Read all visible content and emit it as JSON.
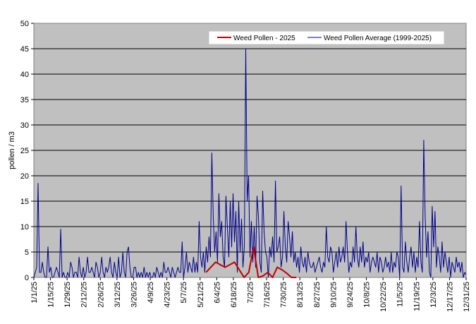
{
  "chart_data": {
    "type": "line",
    "ylabel": "pollen / m3",
    "xlabel": "",
    "title": "",
    "ylim": [
      0,
      50
    ],
    "yticks": [
      0,
      5,
      10,
      15,
      20,
      25,
      30,
      35,
      40,
      45,
      50
    ],
    "grid": "horizontal",
    "legend_position": "top-right",
    "plot_background": "#c0c0c0",
    "x_tick_labels": [
      "1/1/25",
      "1/15/25",
      "1/29/25",
      "2/12/25",
      "2/26/25",
      "3/12/25",
      "3/26/25",
      "4/9/25",
      "4/23/25",
      "5/7/25",
      "5/21/25",
      "6/4/25",
      "6/18/25",
      "7/2/25",
      "7/16/25",
      "7/30/25",
      "8/13/25",
      "8/27/25",
      "9/10/25",
      "9/24/25",
      "10/8/25",
      "10/22/25",
      "11/5/25",
      "11/19/25",
      "12/3/25",
      "12/17/25",
      "12/31/25"
    ],
    "series": [
      {
        "name": "Weed Pollen - 2025",
        "color": "#c00000",
        "x": [
          "5/26/25",
          "5/30/25",
          "6/3/25",
          "6/7/25",
          "6/11/25",
          "6/15/25",
          "6/19/25",
          "6/23/25",
          "6/27/25",
          "7/1/25",
          "7/5/25",
          "7/9/25",
          "7/13/25",
          "7/17/25",
          "7/21/25",
          "7/25/25",
          "7/29/25",
          "8/2/25",
          "8/6/25",
          "8/10/25"
        ],
        "values": [
          1,
          2,
          3,
          2.5,
          2,
          2.5,
          3,
          1.5,
          0,
          1,
          6,
          0,
          0.3,
          1,
          0,
          2,
          1.5,
          0.8,
          0,
          0
        ]
      },
      {
        "name": "Weed Pollen Average (1999-2025)",
        "color": "#00008b",
        "start_date": "1/1/25",
        "values": [
          0,
          1,
          2,
          18.5,
          1,
          1,
          3,
          1,
          0,
          0,
          6,
          1,
          2,
          0,
          0,
          1,
          2,
          1,
          0,
          9.5,
          0,
          1,
          0,
          0,
          1,
          0,
          3,
          2,
          0,
          1,
          1,
          0,
          4,
          1,
          0,
          2,
          0,
          1,
          4,
          1,
          1,
          2,
          1,
          0,
          3,
          2,
          0,
          1,
          4,
          1,
          0,
          2,
          1,
          2,
          4,
          1,
          0,
          3,
          1,
          0,
          4,
          0,
          1,
          5,
          1,
          0,
          5,
          6,
          2,
          0,
          0,
          2,
          2,
          0,
          1,
          0,
          1,
          0,
          2,
          0,
          1,
          0,
          1,
          0,
          0,
          1,
          0,
          2,
          1,
          0,
          1,
          0,
          3,
          1,
          1,
          2,
          1,
          0,
          2,
          1,
          0,
          1,
          2,
          1,
          1,
          7,
          0,
          2,
          5,
          1,
          3,
          2,
          1,
          4,
          1,
          3,
          1,
          11,
          4,
          2,
          5,
          1,
          6,
          3,
          8,
          4,
          24.5,
          12,
          5,
          9,
          3,
          16.5,
          8,
          11,
          4,
          2,
          16,
          10,
          4,
          15,
          6,
          16.5,
          7,
          13,
          1,
          15,
          5,
          11.5,
          2,
          6,
          45,
          15,
          20,
          4,
          11,
          3,
          10,
          2,
          16,
          12,
          3,
          1,
          17,
          9,
          5,
          4,
          0,
          6,
          4,
          8,
          3,
          19,
          5,
          6,
          8,
          2,
          4,
          13,
          6,
          3,
          11,
          8,
          4,
          9,
          3,
          5,
          2,
          4,
          1,
          6,
          3,
          2,
          4,
          1,
          5,
          3,
          2,
          2,
          3,
          1,
          2,
          3,
          4,
          2,
          1,
          3,
          2,
          10,
          4,
          3,
          6,
          5,
          1,
          3,
          5,
          2,
          6,
          3,
          4,
          6,
          3,
          11,
          5,
          1,
          3,
          2,
          6,
          3,
          10,
          4,
          2,
          6,
          3,
          7,
          2,
          4,
          3,
          5,
          1,
          3,
          4,
          3,
          2,
          5,
          1,
          4,
          3,
          1,
          2,
          4,
          2,
          3,
          1,
          5,
          1,
          3,
          2,
          5,
          4,
          0,
          18,
          2,
          1,
          7,
          3,
          1,
          4,
          6,
          2,
          5,
          1,
          4,
          2,
          11,
          3,
          1,
          27,
          12,
          4,
          9,
          1,
          0,
          14,
          6,
          13,
          2,
          6,
          4,
          1,
          7,
          2,
          5,
          3,
          1,
          4,
          0,
          3,
          2,
          1,
          4,
          2,
          3,
          1,
          3,
          0,
          1,
          0.5
        ]
      }
    ]
  }
}
